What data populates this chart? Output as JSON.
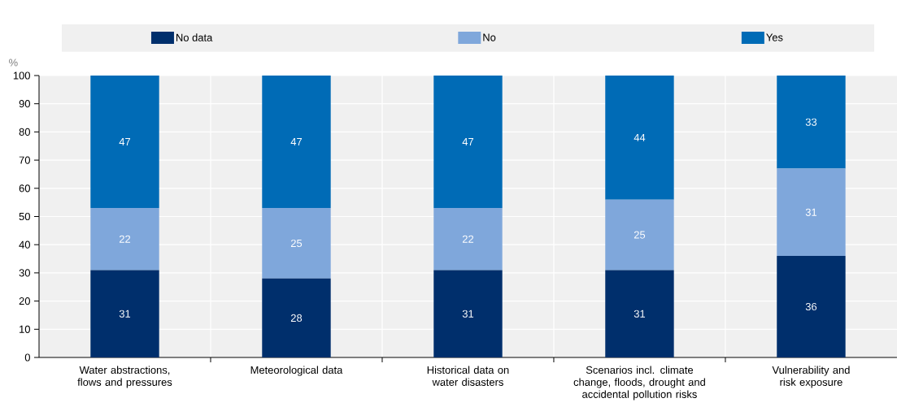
{
  "chart_data": {
    "type": "bar",
    "stacked": true,
    "ylabel": "%",
    "categories": [
      "Water abstractions, flows and pressures",
      "Meteorological data",
      "Historical data on water disasters",
      "Scenarios incl. climate change, floods, drought and accidental pollution risks",
      "Vulnerability and risk exposure"
    ],
    "series": [
      {
        "name": "No data",
        "color": "#002f6c",
        "values": [
          31,
          28,
          31,
          31,
          36
        ]
      },
      {
        "name": "No",
        "color": "#7fa7db",
        "values": [
          22,
          25,
          22,
          25,
          31
        ]
      },
      {
        "name": "Yes",
        "color": "#006bb6",
        "values": [
          47,
          47,
          47,
          44,
          33
        ]
      }
    ],
    "ylim": [
      0,
      100
    ],
    "yticks": [
      0,
      10,
      20,
      30,
      40,
      50,
      60,
      70,
      80,
      90,
      100
    ],
    "grid": "y",
    "legend": "top",
    "data_labels": true
  }
}
